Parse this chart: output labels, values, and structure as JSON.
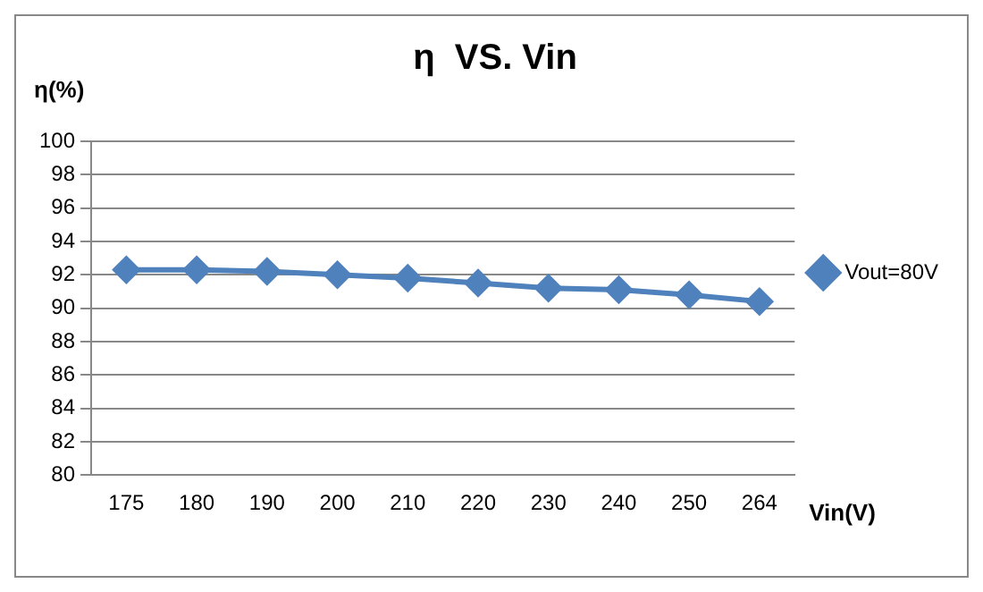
{
  "chart_data": {
    "type": "line",
    "title": "η  VS. Vin",
    "xlabel": "Vin(V)",
    "ylabel": "η(%)",
    "categories": [
      "175",
      "180",
      "190",
      "200",
      "210",
      "220",
      "230",
      "240",
      "250",
      "264"
    ],
    "series": [
      {
        "name": "Vout=80V",
        "color": "#4f81bd",
        "values": [
          92.3,
          92.3,
          92.2,
          92.0,
          91.8,
          91.5,
          91.2,
          91.1,
          90.8,
          90.4
        ]
      }
    ],
    "ylim": [
      80,
      100
    ],
    "yticks": [
      80,
      82,
      84,
      86,
      88,
      90,
      92,
      94,
      96,
      98,
      100
    ],
    "grid": "y",
    "legend": "right",
    "marker": "diamond",
    "line_style": "solid"
  }
}
